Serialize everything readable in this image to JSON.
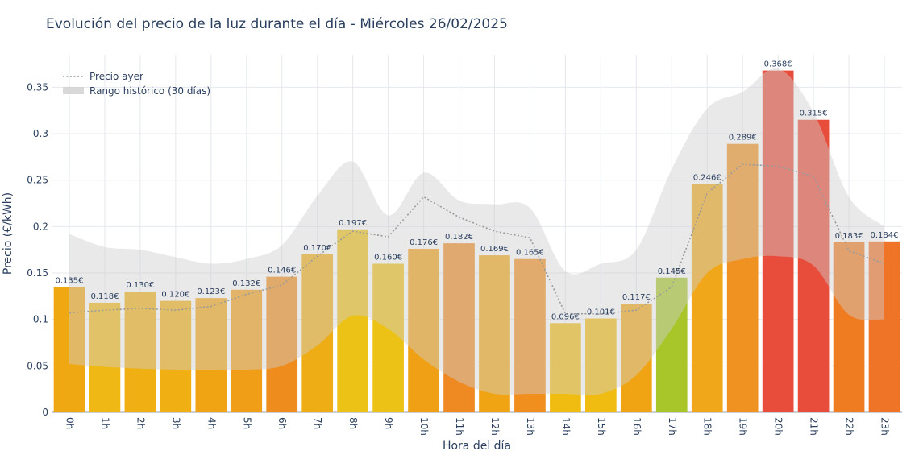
{
  "chart_data": {
    "type": "bar",
    "title": "Evolución del precio de la luz durante el día - Miércoles 26/02/2025",
    "xlabel": "Hora del día",
    "ylabel": "Precio (€/kWh)",
    "ylim": [
      0,
      0.385
    ],
    "yticks": [
      {
        "value": 0,
        "label": "0"
      },
      {
        "value": 0.05,
        "label": "0.05"
      },
      {
        "value": 0.1,
        "label": "0.1"
      },
      {
        "value": 0.15,
        "label": "0.15"
      },
      {
        "value": 0.2,
        "label": "0.2"
      },
      {
        "value": 0.25,
        "label": "0.25"
      },
      {
        "value": 0.3,
        "label": "0.3"
      },
      {
        "value": 0.35,
        "label": "0.35"
      }
    ],
    "grid": true,
    "legend_position": "top-left",
    "categories": [
      "0h",
      "1h",
      "2h",
      "3h",
      "4h",
      "5h",
      "6h",
      "7h",
      "8h",
      "9h",
      "10h",
      "11h",
      "12h",
      "13h",
      "14h",
      "15h",
      "16h",
      "17h",
      "18h",
      "19h",
      "20h",
      "21h",
      "22h",
      "23h"
    ],
    "values": [
      0.135,
      0.118,
      0.13,
      0.12,
      0.123,
      0.132,
      0.146,
      0.17,
      0.197,
      0.16,
      0.176,
      0.182,
      0.169,
      0.165,
      0.096,
      0.101,
      0.117,
      0.145,
      0.246,
      0.289,
      0.368,
      0.315,
      0.183,
      0.184
    ],
    "value_labels": [
      "0.135€",
      "0.118€",
      "0.130€",
      "0.120€",
      "0.123€",
      "0.132€",
      "0.146€",
      "0.170€",
      "0.197€",
      "0.160€",
      "0.176€",
      "0.182€",
      "0.169€",
      "0.165€",
      "0.096€",
      "0.101€",
      "0.117€",
      "0.145€",
      "0.246€",
      "0.289€",
      "0.368€",
      "0.315€",
      "0.183€",
      "0.184€"
    ],
    "bar_colors": [
      "#f0a812",
      "#f0b814",
      "#f0b014",
      "#f0b014",
      "#f0a414",
      "#f09e18",
      "#ee8c1e",
      "#eead14",
      "#edc216",
      "#edc216",
      "#f0a014",
      "#ef8a22",
      "#f0a414",
      "#f08e1e",
      "#f0bc12",
      "#f0bc12",
      "#f0a414",
      "#a8c62a",
      "#f0a81a",
      "#f09222",
      "#e84c3a",
      "#e84c3a",
      "#f07c22",
      "#f07428"
    ],
    "series": [
      {
        "name": "Precio ayer",
        "color": "#a0a0a0",
        "style": "dotted",
        "values": [
          0.107,
          0.11,
          0.112,
          0.11,
          0.114,
          0.127,
          0.137,
          0.168,
          0.195,
          0.189,
          0.232,
          0.21,
          0.195,
          0.188,
          0.106,
          0.106,
          0.11,
          0.135,
          0.236,
          0.267,
          0.265,
          0.254,
          0.174,
          0.16
        ]
      },
      {
        "name": "Rango histórico (30 días)",
        "color": "#d9d9d9",
        "style": "band",
        "upper": [
          0.192,
          0.178,
          0.175,
          0.167,
          0.16,
          0.165,
          0.18,
          0.233,
          0.27,
          0.212,
          0.258,
          0.228,
          0.224,
          0.22,
          0.152,
          0.16,
          0.175,
          0.262,
          0.327,
          0.345,
          0.37,
          0.323,
          0.232,
          0.2
        ],
        "lower": [
          0.052,
          0.049,
          0.047,
          0.046,
          0.046,
          0.046,
          0.05,
          0.072,
          0.104,
          0.09,
          0.057,
          0.033,
          0.02,
          0.02,
          0.02,
          0.02,
          0.04,
          0.09,
          0.15,
          0.165,
          0.168,
          0.158,
          0.105,
          0.1
        ]
      }
    ]
  }
}
